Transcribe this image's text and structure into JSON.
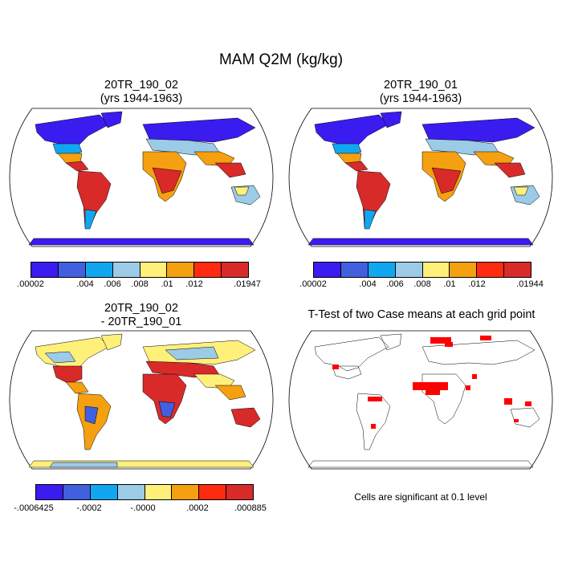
{
  "main_title": "MAM Q2M (kg/kg)",
  "panels": [
    {
      "title_line1": "20TR_190_02",
      "title_line2": "(yrs 1944-1963)"
    },
    {
      "title_line1": "20TR_190_01",
      "title_line2": "(yrs 1944-1963)"
    },
    {
      "title_line1": "20TR_190_02",
      "title_line2": "- 20TR_190_01"
    },
    {
      "title_line1": "T-Test of two Case means at each grid point"
    }
  ],
  "colorbars": [
    {
      "colors": [
        "#3a1cf0",
        "#4060e0",
        "#11a7f0",
        "#9ccbe8",
        "#fff07a",
        "#f5a010",
        "#ff2b10",
        "#d92a2a"
      ],
      "labels": [
        ".00002",
        ".004",
        ".006",
        ".008",
        ".01",
        ".012",
        ".01947"
      ]
    },
    {
      "colors": [
        "#3a1cf0",
        "#4060e0",
        "#11a7f0",
        "#9ccbe8",
        "#fff07a",
        "#f5a010",
        "#ff2b10",
        "#d92a2a"
      ],
      "labels": [
        ".00002",
        ".004",
        ".006",
        ".008",
        ".01",
        ".012",
        ".01944"
      ]
    },
    {
      "colors": [
        "#3a1cf0",
        "#4060e0",
        "#11a7f0",
        "#9ccbe8",
        "#fff07a",
        "#f5a010",
        "#ff2b10",
        "#d92a2a"
      ],
      "labels": [
        "-.0006425",
        "-.0002",
        "-.0000",
        ".0002",
        ".000885"
      ]
    }
  ],
  "significance_note": "Cells are significant at 0.1 level"
}
